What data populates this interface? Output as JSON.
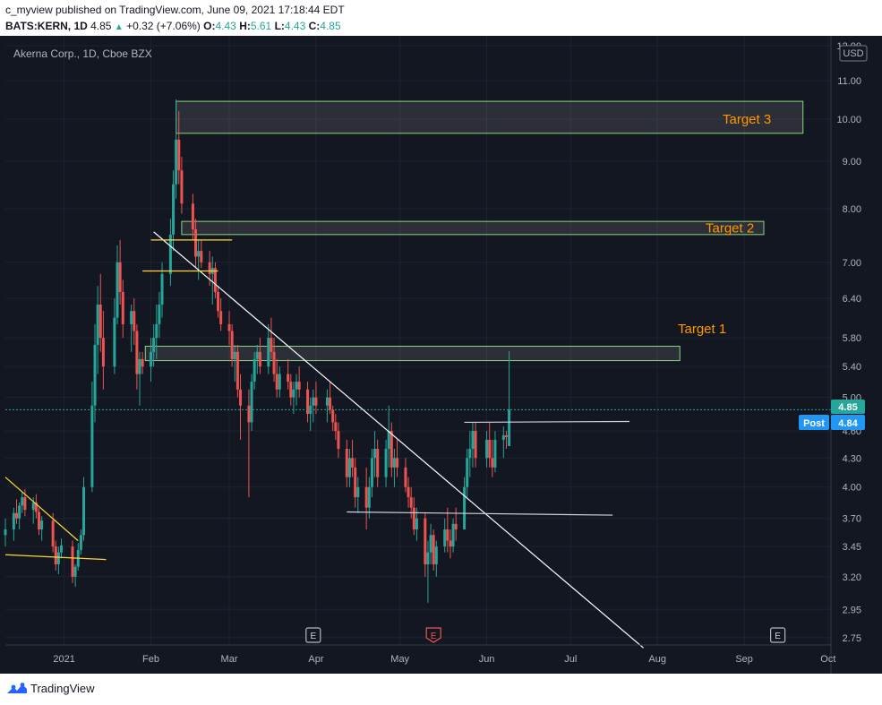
{
  "header": {
    "published_line": "c_myview published on TradingView.com, June 09, 2021 17:18:44 EDT",
    "symbol": "BATS:KERN, 1D",
    "last": "4.85",
    "change": "+0.32 (+7.06%)",
    "o_label": "O:",
    "o_value": "4.43",
    "h_label": "H:",
    "h_value": "5.61",
    "l_label": "L:",
    "l_value": "4.43",
    "c_label": "C:",
    "c_value": "4.85"
  },
  "chart_title": "Akerna Corp., 1D, Cboe BZX",
  "currency": "USD",
  "price_badge": "4.85",
  "post_label": "Post",
  "post_badge": "4.84",
  "earnings_marker": "E",
  "footer": {
    "brand": "TradingView"
  },
  "colors": {
    "background": "#131722",
    "up": "#26a69a",
    "down": "#ef5350",
    "target_text": "#ff9800",
    "zone_border": "#8bd67f",
    "trendline": "#ffffff",
    "support": "#fdd835",
    "price_line": "#26a69a",
    "post_badge": "#2196f3"
  },
  "chart_data": {
    "type": "candlestick",
    "scale": "log",
    "ylim": [
      2.7,
      12.3
    ],
    "yticks": [
      2.75,
      2.95,
      3.2,
      3.45,
      3.7,
      4.0,
      4.3,
      4.6,
      5.0,
      5.4,
      5.8,
      6.4,
      7.0,
      8.0,
      9.0,
      10.0,
      11.0,
      12.0
    ],
    "ytick_labels": [
      "2.75",
      "2.95",
      "3.20",
      "3.45",
      "3.70",
      "4.00",
      "4.30",
      "4.60",
      "5.00",
      "5.40",
      "5.80",
      "6.40",
      "7.00",
      "8.00",
      "9.00",
      "10.00",
      "11.00",
      "12.00"
    ],
    "xticks": [
      "2021",
      "Feb",
      "Mar",
      "Apr",
      "May",
      "Jun",
      "Jul",
      "Aug",
      "Sep",
      "Oct"
    ],
    "xtick_dates": [
      "2021-01-01",
      "2021-02-01",
      "2021-03-01",
      "2021-04-01",
      "2021-05-01",
      "2021-06-01",
      "2021-07-01",
      "2021-08-01",
      "2021-09-01",
      "2021-10-01"
    ],
    "xlim": [
      "2020-12-11",
      "2021-10-02"
    ],
    "grid": true,
    "ohlc": [
      [
        "2020-12-11",
        3.55,
        3.7,
        3.45,
        3.6
      ],
      [
        "2020-12-14",
        3.6,
        3.8,
        3.5,
        3.75
      ],
      [
        "2020-12-15",
        3.75,
        3.88,
        3.65,
        3.7
      ],
      [
        "2020-12-16",
        3.7,
        3.85,
        3.6,
        3.82
      ],
      [
        "2020-12-17",
        3.82,
        3.95,
        3.75,
        3.9
      ],
      [
        "2020-12-18",
        3.9,
        3.98,
        3.72,
        3.78
      ],
      [
        "2020-12-21",
        3.78,
        3.9,
        3.65,
        3.85
      ],
      [
        "2020-12-22",
        3.85,
        3.93,
        3.7,
        3.76
      ],
      [
        "2020-12-23",
        3.76,
        3.8,
        3.55,
        3.6
      ],
      [
        "2020-12-24",
        3.6,
        3.72,
        3.5,
        3.68
      ],
      [
        "2020-12-28",
        3.68,
        3.75,
        3.4,
        3.45
      ],
      [
        "2020-12-29",
        3.45,
        3.5,
        3.25,
        3.3
      ],
      [
        "2020-12-30",
        3.3,
        3.45,
        3.22,
        3.4
      ],
      [
        "2020-12-31",
        3.4,
        3.52,
        3.35,
        3.46
      ],
      [
        "2021-01-04",
        3.45,
        3.5,
        3.15,
        3.2
      ],
      [
        "2021-01-05",
        3.2,
        3.3,
        3.12,
        3.28
      ],
      [
        "2021-01-06",
        3.28,
        3.48,
        3.25,
        3.42
      ],
      [
        "2021-01-07",
        3.42,
        3.6,
        3.38,
        3.55
      ],
      [
        "2021-01-08",
        3.55,
        4.1,
        3.5,
        4.0
      ],
      [
        "2021-01-11",
        4.0,
        5.2,
        3.95,
        4.9
      ],
      [
        "2021-01-12",
        4.9,
        6.0,
        4.7,
        5.7
      ],
      [
        "2021-01-13",
        5.7,
        6.6,
        5.3,
        6.3
      ],
      [
        "2021-01-14",
        6.3,
        6.8,
        5.6,
        5.8
      ],
      [
        "2021-01-15",
        5.8,
        6.2,
        5.1,
        5.4
      ],
      [
        "2021-01-19",
        5.4,
        6.4,
        5.3,
        6.1
      ],
      [
        "2021-01-20",
        6.1,
        7.3,
        6.0,
        7.0
      ],
      [
        "2021-01-21",
        7.0,
        7.4,
        6.3,
        6.5
      ],
      [
        "2021-01-22",
        6.5,
        6.7,
        5.8,
        6.0
      ],
      [
        "2021-01-25",
        6.0,
        6.3,
        5.6,
        6.2
      ],
      [
        "2021-01-26",
        6.2,
        6.4,
        5.7,
        5.9
      ],
      [
        "2021-01-27",
        5.9,
        6.0,
        5.1,
        5.3
      ],
      [
        "2021-01-28",
        5.3,
        5.6,
        4.9,
        5.5
      ],
      [
        "2021-01-29",
        5.5,
        5.6,
        5.3,
        5.4
      ],
      [
        "2021-02-01",
        5.4,
        5.8,
        5.2,
        5.6
      ],
      [
        "2021-02-02",
        5.6,
        6.0,
        5.4,
        5.8
      ],
      [
        "2021-02-03",
        5.8,
        6.3,
        5.5,
        6.0
      ],
      [
        "2021-02-04",
        6.0,
        6.5,
        5.8,
        6.3
      ],
      [
        "2021-02-05",
        6.3,
        7.0,
        6.1,
        6.8
      ],
      [
        "2021-02-08",
        6.8,
        7.8,
        6.6,
        7.5
      ],
      [
        "2021-02-09",
        7.5,
        8.8,
        7.2,
        8.5
      ],
      [
        "2021-02-10",
        8.5,
        10.5,
        8.2,
        9.5
      ],
      [
        "2021-02-11",
        9.5,
        10.2,
        8.5,
        8.8
      ],
      [
        "2021-02-12",
        8.8,
        9.1,
        7.9,
        8.1
      ],
      [
        "2021-02-16",
        8.1,
        8.3,
        7.4,
        7.6
      ],
      [
        "2021-02-17",
        7.6,
        7.8,
        6.9,
        7.1
      ],
      [
        "2021-02-18",
        7.1,
        7.4,
        6.7,
        7.2
      ],
      [
        "2021-02-19",
        7.2,
        7.4,
        6.9,
        7.0
      ],
      [
        "2021-02-22",
        7.0,
        7.2,
        6.6,
        6.8
      ],
      [
        "2021-02-23",
        6.8,
        7.1,
        6.3,
        6.9
      ],
      [
        "2021-02-24",
        6.9,
        7.0,
        6.4,
        6.5
      ],
      [
        "2021-02-25",
        6.5,
        6.6,
        6.1,
        6.2
      ],
      [
        "2021-02-26",
        6.2,
        6.4,
        5.9,
        6.0
      ],
      [
        "2021-03-01",
        6.0,
        6.2,
        5.7,
        5.9
      ],
      [
        "2021-03-02",
        5.9,
        6.0,
        5.4,
        5.5
      ],
      [
        "2021-03-03",
        5.5,
        5.7,
        5.2,
        5.6
      ],
      [
        "2021-03-04",
        5.6,
        5.7,
        5.0,
        5.1
      ],
      [
        "2021-03-05",
        5.1,
        5.3,
        4.5,
        4.9
      ],
      [
        "2021-03-08",
        4.9,
        5.1,
        3.9,
        4.7
      ],
      [
        "2021-03-09",
        4.7,
        5.3,
        4.6,
        5.2
      ],
      [
        "2021-03-10",
        5.2,
        5.6,
        5.1,
        5.5
      ],
      [
        "2021-03-11",
        5.5,
        5.7,
        5.3,
        5.6
      ],
      [
        "2021-03-12",
        5.6,
        5.8,
        5.3,
        5.4
      ],
      [
        "2021-03-15",
        5.4,
        6.0,
        5.3,
        5.8
      ],
      [
        "2021-03-16",
        5.8,
        6.1,
        5.5,
        5.6
      ],
      [
        "2021-03-17",
        5.6,
        5.8,
        5.2,
        5.3
      ],
      [
        "2021-03-18",
        5.3,
        5.5,
        5.0,
        5.1
      ],
      [
        "2021-03-19",
        5.1,
        5.4,
        5.0,
        5.3
      ],
      [
        "2021-03-22",
        5.3,
        5.5,
        5.1,
        5.2
      ],
      [
        "2021-03-23",
        5.2,
        5.3,
        4.9,
        5.0
      ],
      [
        "2021-03-24",
        5.0,
        5.2,
        4.8,
        5.1
      ],
      [
        "2021-03-25",
        5.1,
        5.3,
        4.9,
        5.2
      ],
      [
        "2021-03-26",
        5.2,
        5.4,
        5.0,
        5.1
      ],
      [
        "2021-03-29",
        5.1,
        5.2,
        4.7,
        4.8
      ],
      [
        "2021-03-30",
        4.8,
        5.0,
        4.6,
        4.9
      ],
      [
        "2021-03-31",
        4.9,
        5.1,
        4.7,
        5.0
      ],
      [
        "2021-04-01",
        5.0,
        5.2,
        4.8,
        4.9
      ],
      [
        "2021-04-05",
        4.9,
        5.1,
        4.7,
        5.0
      ],
      [
        "2021-04-06",
        5.0,
        5.2,
        4.8,
        4.85
      ],
      [
        "2021-04-07",
        4.85,
        4.9,
        4.6,
        4.7
      ],
      [
        "2021-04-08",
        4.7,
        4.8,
        4.5,
        4.6
      ],
      [
        "2021-04-09",
        4.6,
        4.7,
        4.3,
        4.4
      ],
      [
        "2021-04-12",
        4.4,
        4.5,
        4.0,
        4.1
      ],
      [
        "2021-04-13",
        4.1,
        4.4,
        4.0,
        4.3
      ],
      [
        "2021-04-14",
        4.3,
        4.5,
        4.1,
        4.2
      ],
      [
        "2021-04-15",
        4.2,
        4.3,
        3.8,
        3.9
      ],
      [
        "2021-04-16",
        3.9,
        4.1,
        3.75,
        4.0
      ],
      [
        "2021-04-19",
        4.0,
        4.2,
        3.6,
        3.8
      ],
      [
        "2021-04-20",
        3.8,
        4.1,
        3.7,
        4.0
      ],
      [
        "2021-04-21",
        4.0,
        4.4,
        3.9,
        4.3
      ],
      [
        "2021-04-22",
        4.3,
        4.6,
        4.1,
        4.4
      ],
      [
        "2021-04-23",
        4.4,
        4.5,
        4.0,
        4.1
      ],
      [
        "2021-04-26",
        4.1,
        4.5,
        4.0,
        4.4
      ],
      [
        "2021-04-27",
        4.4,
        4.9,
        4.2,
        4.6
      ],
      [
        "2021-04-28",
        4.6,
        4.7,
        4.1,
        4.2
      ],
      [
        "2021-04-29",
        4.2,
        4.4,
        4.0,
        4.3
      ],
      [
        "2021-04-30",
        4.3,
        4.5,
        4.1,
        4.2
      ],
      [
        "2021-05-03",
        4.2,
        4.3,
        3.95,
        4.0
      ],
      [
        "2021-05-04",
        4.0,
        4.1,
        3.8,
        3.9
      ],
      [
        "2021-05-05",
        3.9,
        4.0,
        3.7,
        3.8
      ],
      [
        "2021-05-06",
        3.8,
        3.9,
        3.55,
        3.6
      ],
      [
        "2021-05-07",
        3.6,
        3.8,
        3.5,
        3.7
      ],
      [
        "2021-05-10",
        3.7,
        3.75,
        3.2,
        3.3
      ],
      [
        "2021-05-11",
        3.3,
        3.5,
        3.0,
        3.4
      ],
      [
        "2021-05-12",
        3.4,
        3.65,
        3.3,
        3.55
      ],
      [
        "2021-05-13",
        3.55,
        3.6,
        3.25,
        3.3
      ],
      [
        "2021-05-14",
        3.3,
        3.5,
        3.2,
        3.45
      ],
      [
        "2021-05-17",
        3.45,
        3.7,
        3.4,
        3.6
      ],
      [
        "2021-05-18",
        3.6,
        3.8,
        3.4,
        3.5
      ],
      [
        "2021-05-19",
        3.5,
        3.6,
        3.35,
        3.45
      ],
      [
        "2021-05-20",
        3.45,
        3.7,
        3.4,
        3.65
      ],
      [
        "2021-05-21",
        3.65,
        3.8,
        3.5,
        3.6
      ],
      [
        "2021-05-24",
        3.6,
        4.1,
        3.6,
        4.0
      ],
      [
        "2021-05-25",
        4.0,
        4.4,
        3.9,
        4.3
      ],
      [
        "2021-05-26",
        4.3,
        4.6,
        4.1,
        4.4
      ],
      [
        "2021-05-27",
        4.4,
        4.7,
        4.2,
        4.6
      ],
      [
        "2021-05-28",
        4.6,
        4.7,
        4.2,
        4.3
      ],
      [
        "2021-06-01",
        4.3,
        4.6,
        4.2,
        4.5
      ],
      [
        "2021-06-02",
        4.5,
        4.7,
        4.2,
        4.3
      ],
      [
        "2021-06-03",
        4.3,
        4.5,
        4.1,
        4.2
      ],
      [
        "2021-06-04",
        4.2,
        4.6,
        4.15,
        4.5
      ],
      [
        "2021-06-07",
        4.5,
        4.65,
        4.3,
        4.55
      ],
      [
        "2021-06-08",
        4.55,
        4.6,
        4.4,
        4.53
      ],
      [
        "2021-06-09",
        4.43,
        5.61,
        4.43,
        4.85
      ]
    ],
    "zones": [
      {
        "label": "Target 3",
        "from": "2021-02-10",
        "to": "2021-09-22",
        "low": 9.65,
        "high": 10.45
      },
      {
        "label": "Target 2",
        "from": "2021-02-12",
        "to": "2021-09-08",
        "low": 7.5,
        "high": 7.75
      },
      {
        "label": "Target 1",
        "from": "2021-01-30",
        "to": "2021-08-09",
        "low": 5.48,
        "high": 5.68
      }
    ],
    "lines": [
      {
        "kind": "trendline",
        "from": [
          "2021-02-02",
          7.55
        ],
        "to": [
          "2021-07-27",
          2.68
        ]
      },
      {
        "kind": "support",
        "from": [
          "2021-02-01",
          7.4
        ],
        "to": [
          "2021-03-02",
          7.4
        ]
      },
      {
        "kind": "support",
        "from": [
          "2021-01-29",
          6.85
        ],
        "to": [
          "2021-02-25",
          6.85
        ]
      },
      {
        "kind": "support",
        "from": [
          "2020-12-11",
          3.38
        ],
        "to": [
          "2021-01-16",
          3.34
        ]
      },
      {
        "kind": "support",
        "from": [
          "2020-12-11",
          4.1
        ],
        "to": [
          "2021-01-06",
          3.5
        ]
      },
      {
        "kind": "level",
        "from": [
          "2021-04-12",
          3.76
        ],
        "to": [
          "2021-07-16",
          3.73
        ]
      },
      {
        "kind": "level",
        "from": [
          "2021-05-24",
          4.7
        ],
        "to": [
          "2021-07-22",
          4.71
        ]
      }
    ],
    "earnings": [
      "2021-03-31",
      "2021-05-13",
      "2021-09-13"
    ],
    "earnings_highlighted": "2021-05-13",
    "last_price": 4.85,
    "post_price": 4.84
  }
}
